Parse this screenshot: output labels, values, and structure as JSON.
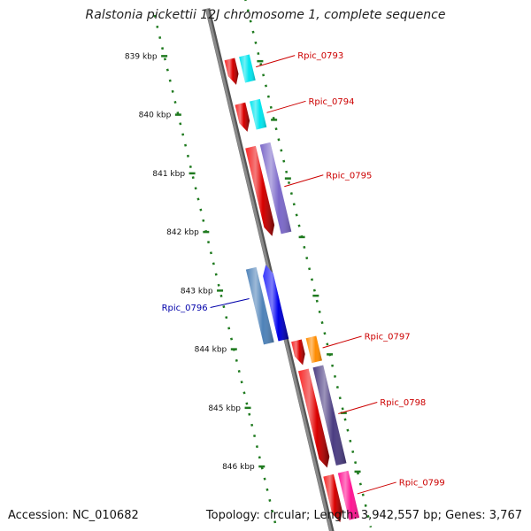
{
  "title": "Ralstonia pickettii 12J chromosome 1, complete sequence",
  "footer": {
    "accession": "Accession: NC_010682",
    "summary": "Topology: circular; Length: 3,942,557 bp; Genes: 3,767"
  },
  "colors": {
    "backbone": "#8a8a8a",
    "ruler": "#1f7a1f",
    "forward_label": "#cc0000",
    "reverse_label": "#0000aa"
  },
  "ruler": {
    "unit": "kbp",
    "ticks": [
      {
        "kbp": 839,
        "label": "839 kbp"
      },
      {
        "kbp": 840,
        "label": "840 kbp"
      },
      {
        "kbp": 841,
        "label": "841 kbp"
      },
      {
        "kbp": 842,
        "label": "842 kbp"
      },
      {
        "kbp": 843,
        "label": "843 kbp"
      },
      {
        "kbp": 844,
        "label": "844 kbp"
      },
      {
        "kbp": 845,
        "label": "845 kbp"
      },
      {
        "kbp": 846,
        "label": "846 kbp"
      }
    ]
  },
  "genes": [
    {
      "label": "Rpic_0793",
      "strand": "forward",
      "start_kbp": 839.3,
      "end_kbp": 839.74,
      "cds_color": "#00e5ee"
    },
    {
      "label": "Rpic_0794",
      "strand": "forward",
      "start_kbp": 840.06,
      "end_kbp": 840.54,
      "cds_color": "#00e5ee"
    },
    {
      "label": "Rpic_0795",
      "strand": "forward",
      "start_kbp": 840.8,
      "end_kbp": 842.32,
      "cds_color": "#7b68c9"
    },
    {
      "label": "Rpic_0796",
      "strand": "reverse",
      "start_kbp": 842.76,
      "end_kbp": 844.04,
      "cds_color": "#4e82b8"
    },
    {
      "label": "Rpic_0797",
      "strand": "forward",
      "start_kbp": 844.1,
      "end_kbp": 844.52,
      "cds_color": "#ff8c00"
    },
    {
      "label": "Rpic_0798",
      "strand": "forward",
      "start_kbp": 844.6,
      "end_kbp": 846.27,
      "cds_color": "#4b3d82"
    },
    {
      "label": "Rpic_0799",
      "strand": "forward",
      "start_kbp": 846.4,
      "end_kbp": 847.2,
      "cds_color": "#ff1493"
    }
  ]
}
